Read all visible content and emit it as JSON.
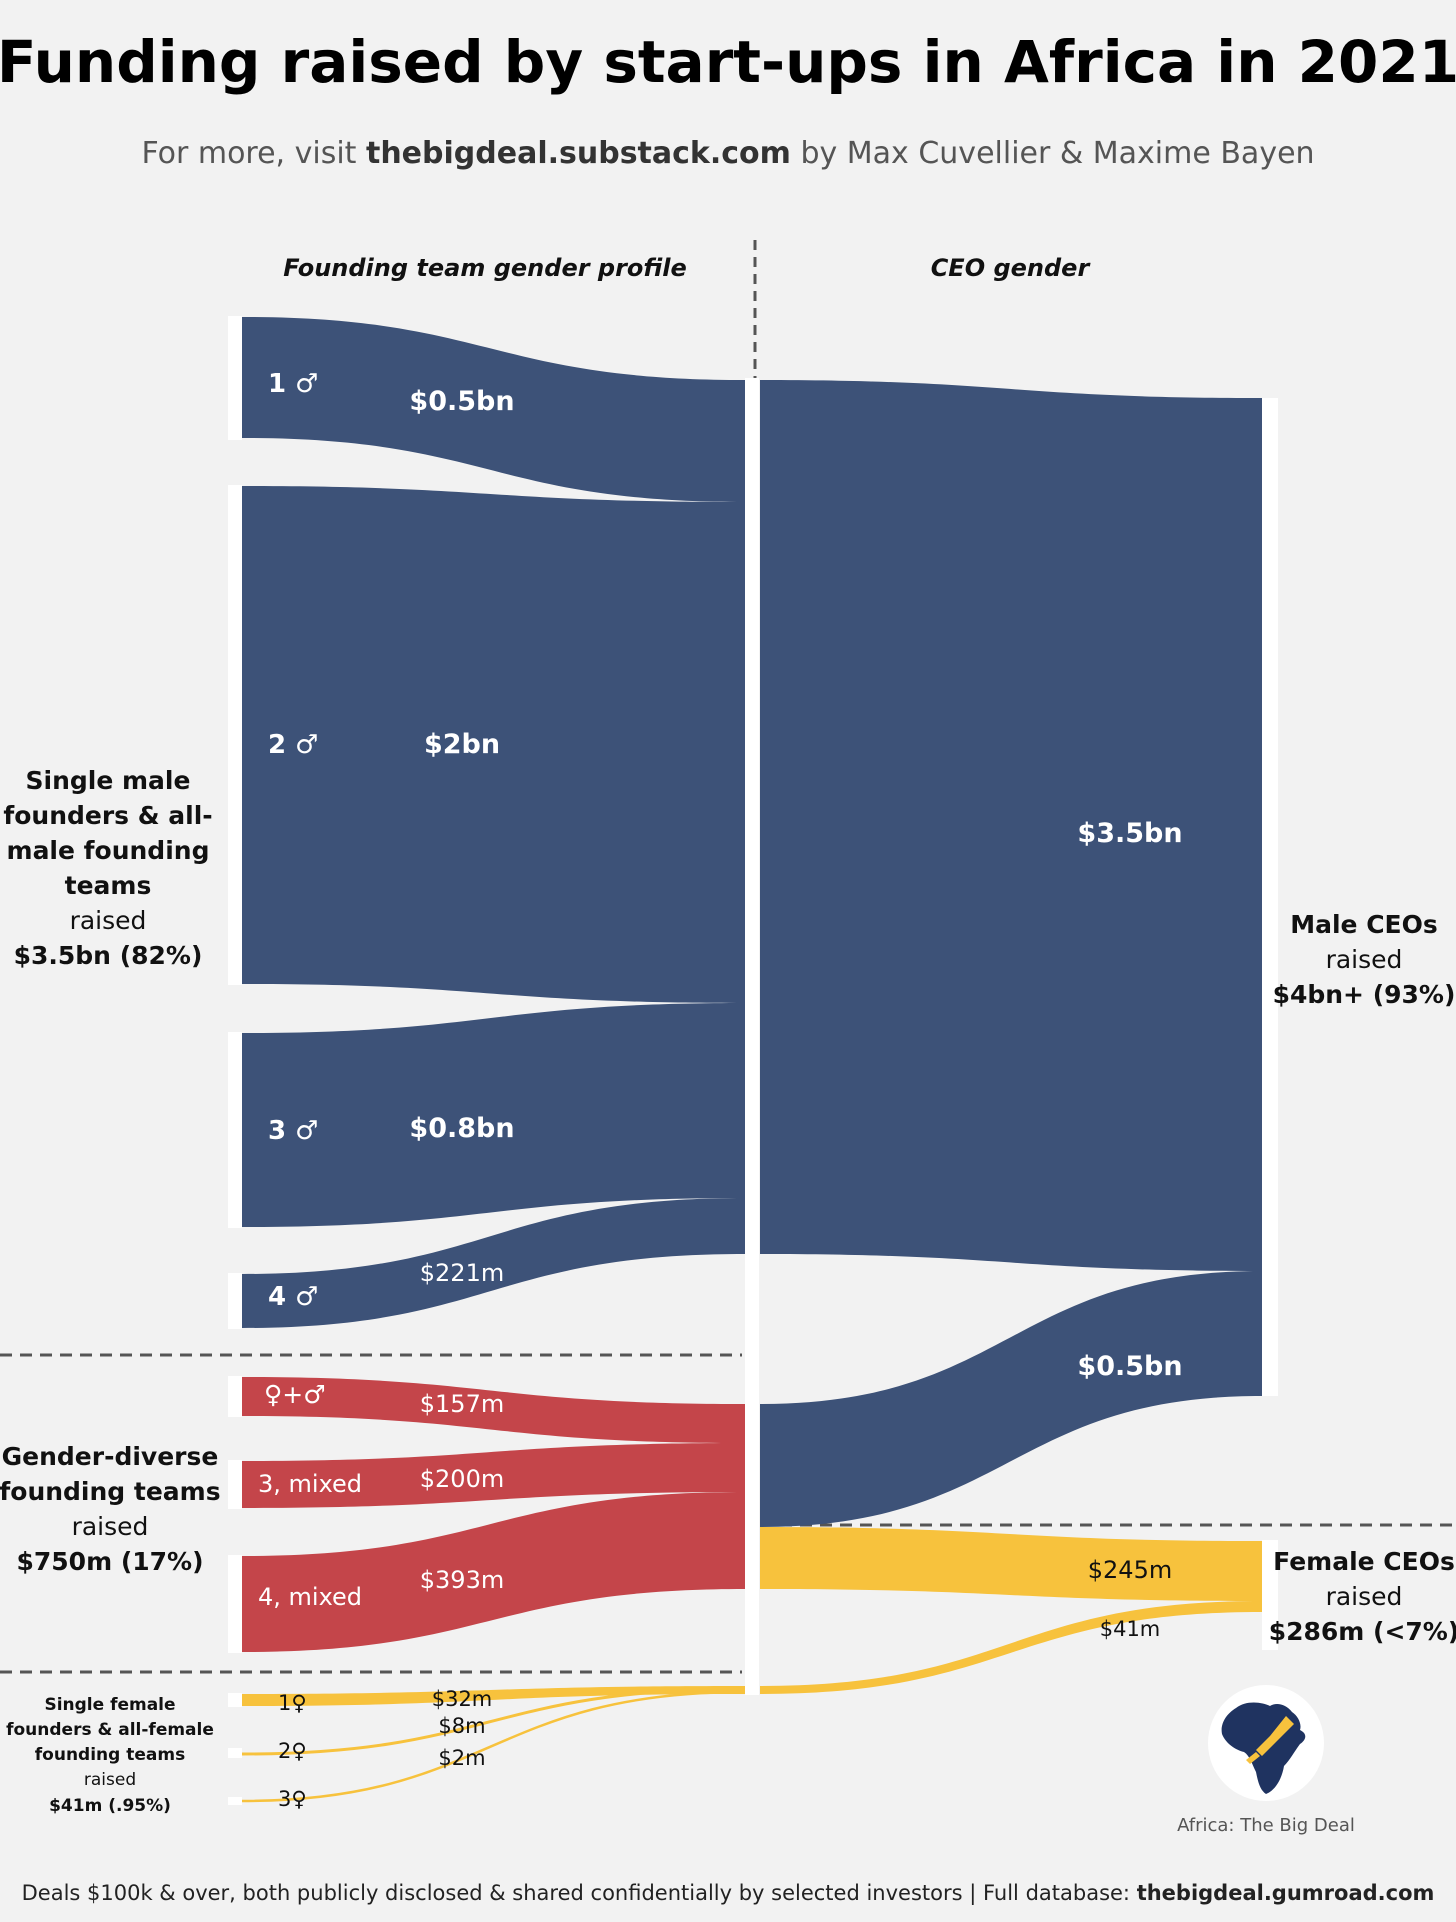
{
  "title": "Funding raised by start-ups in Africa in 2021",
  "subtitle": {
    "prefix": "For more, visit ",
    "link": "thebigdeal.substack.com",
    "suffix": " by Max Cuvellier & Maxime Bayen"
  },
  "column_headers": {
    "left": "Founding team gender profile",
    "right": "CEO gender"
  },
  "colors": {
    "male": "#3d5278",
    "mixed": "#c4454a",
    "female": "#f7c23d",
    "background": "#f2f2f2"
  },
  "founding_groups": {
    "male": {
      "lines": [
        "Single male",
        "founders & all-",
        "male founding",
        "teams"
      ],
      "raised_word": "raised",
      "amount": "$3.5bn (82%)"
    },
    "mixed": {
      "lines": [
        "Gender-diverse",
        "founding teams"
      ],
      "raised_word": "raised",
      "amount": "$750m (17%)"
    },
    "female": {
      "lines": [
        "Single female",
        "founders & all-female",
        "founding teams"
      ],
      "raised_word": "raised",
      "amount": "$41m (.95%)"
    }
  },
  "ceo_groups": {
    "male": {
      "name": "Male CEOs",
      "raised_word": "raised",
      "amount": "$4bn+ (93%)"
    },
    "female": {
      "name": "Female CEOs",
      "raised_word": "raised",
      "amount": "$286m (<7%)"
    }
  },
  "chart_data": {
    "type": "sankey",
    "unit": "USD",
    "left_nodes": [
      {
        "label": "1 ♂",
        "group": "male",
        "value_label": "$0.5bn",
        "value": 500000000
      },
      {
        "label": "2 ♂",
        "group": "male",
        "value_label": "$2bn",
        "value": 2000000000
      },
      {
        "label": "3 ♂",
        "group": "male",
        "value_label": "$0.8bn",
        "value": 800000000
      },
      {
        "label": "4 ♂",
        "group": "male",
        "value_label": "$221m",
        "value": 221000000
      },
      {
        "label": "♀+♂",
        "group": "mixed",
        "value_label": "$157m",
        "value": 157000000
      },
      {
        "label": "3, mixed",
        "group": "mixed",
        "value_label": "$200m",
        "value": 200000000
      },
      {
        "label": "4, mixed",
        "group": "mixed",
        "value_label": "$393m",
        "value": 393000000
      },
      {
        "label": "1♀",
        "group": "female",
        "value_label": "$32m",
        "value": 32000000
      },
      {
        "label": "2♀",
        "group": "female",
        "value_label": "$8m",
        "value": 8000000
      },
      {
        "label": "3♀",
        "group": "female",
        "value_label": "$2m",
        "value": 2000000
      }
    ],
    "middle_to_right": [
      {
        "from": "male founding teams",
        "to": "Male CEOs",
        "value_label": "$3.5bn",
        "value": 3500000000
      },
      {
        "from": "gender-diverse founding teams",
        "to": "Male CEOs",
        "value_label": "$0.5bn",
        "value": 500000000
      },
      {
        "from": "gender-diverse founding teams",
        "to": "Female CEOs",
        "value_label": "$245m",
        "value": 245000000
      },
      {
        "from": "female founding teams",
        "to": "Female CEOs",
        "value_label": "$41m",
        "value": 41000000
      }
    ],
    "right_nodes": [
      {
        "label": "Male CEOs",
        "amount": "$4bn+ (93%)"
      },
      {
        "label": "Female CEOs",
        "amount": "$286m (<7%)"
      }
    ]
  },
  "logo": {
    "caption": "Africa: The Big Deal"
  },
  "footer": {
    "text": "Deals $100k & over,  both publicly disclosed & shared confidentially by selected investors | Full database: ",
    "link": "thebigdeal.gumroad.com"
  }
}
